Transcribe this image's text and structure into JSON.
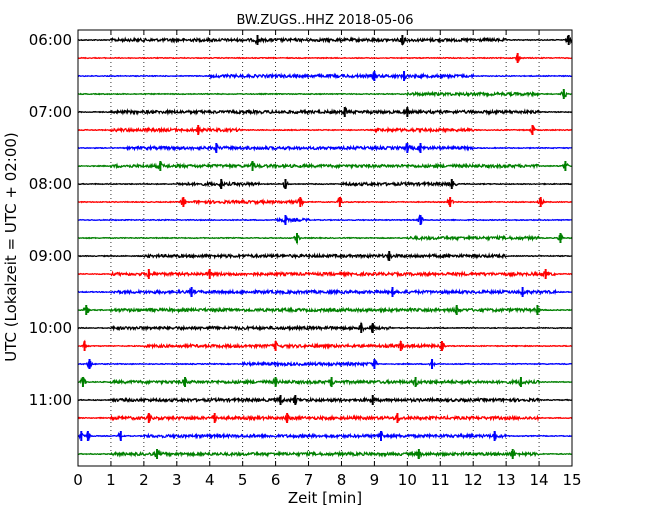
{
  "chart_data": {
    "type": "line",
    "title": "BW.ZUGS..HHZ 2018-05-06",
    "xlabel": "Zeit  [min]",
    "ylabel": "UTC (Lokalzeit = UTC + 02:00)",
    "xlim": [
      0,
      15
    ],
    "x_ticks": [
      "0",
      "1",
      "2",
      "3",
      "4",
      "5",
      "6",
      "7",
      "8",
      "9",
      "10",
      "11",
      "12",
      "13",
      "14",
      "15"
    ],
    "y_tick_labels": [
      "06:00",
      "07:00",
      "08:00",
      "09:00",
      "10:00",
      "11:00"
    ],
    "grid": "vertical-dotted",
    "trace_colors": [
      "#000000",
      "#ff0000",
      "#0000ff",
      "#008000"
    ],
    "traces": [
      {
        "start": "06:00",
        "color": "#000000",
        "spikes": [
          5.45,
          9.85,
          14.9
        ],
        "noisy": [
          [
            1,
            13
          ]
        ]
      },
      {
        "start": "06:15",
        "color": "#ff0000",
        "spikes": [
          13.35
        ],
        "noisy": []
      },
      {
        "start": "06:30",
        "color": "#0000ff",
        "spikes": [
          9.0,
          9.9
        ],
        "noisy": [
          [
            4,
            12
          ]
        ]
      },
      {
        "start": "06:45",
        "color": "#008000",
        "spikes": [
          14.75
        ],
        "noisy": [
          [
            10,
            14
          ]
        ]
      },
      {
        "start": "07:00",
        "color": "#000000",
        "spikes": [
          8.1,
          10.0
        ],
        "noisy": [
          [
            1,
            14
          ]
        ]
      },
      {
        "start": "07:15",
        "color": "#ff0000",
        "spikes": [
          3.65,
          13.8
        ],
        "noisy": [
          [
            1,
            5
          ],
          [
            9,
            12
          ]
        ]
      },
      {
        "start": "07:30",
        "color": "#0000ff",
        "spikes": [
          4.2,
          10.0,
          10.4
        ],
        "noisy": [
          [
            1.5,
            12
          ]
        ]
      },
      {
        "start": "07:45",
        "color": "#008000",
        "spikes": [
          2.5,
          5.3,
          14.8
        ],
        "noisy": [
          [
            1,
            14
          ]
        ]
      },
      {
        "start": "08:00",
        "color": "#000000",
        "spikes": [
          4.35,
          6.3,
          11.35
        ],
        "noisy": [
          [
            3,
            5.5
          ],
          [
            8,
            11.5
          ]
        ]
      },
      {
        "start": "08:15",
        "color": "#ff0000",
        "spikes": [
          3.2,
          6.75,
          7.95,
          11.3,
          14.05
        ],
        "noisy": [
          [
            3.5,
            6.8
          ]
        ]
      },
      {
        "start": "08:30",
        "color": "#0000ff",
        "spikes": [
          6.3,
          10.4
        ],
        "noisy": [
          [
            6,
            7
          ]
        ]
      },
      {
        "start": "08:45",
        "color": "#008000",
        "spikes": [
          6.65,
          14.65
        ],
        "noisy": [
          [
            10,
            14
          ]
        ]
      },
      {
        "start": "09:00",
        "color": "#000000",
        "spikes": [
          9.45
        ],
        "noisy": [
          [
            2,
            13
          ]
        ]
      },
      {
        "start": "09:15",
        "color": "#ff0000",
        "spikes": [
          2.15,
          4.0,
          14.2
        ],
        "noisy": [
          [
            1,
            14.5
          ]
        ]
      },
      {
        "start": "09:30",
        "color": "#0000ff",
        "spikes": [
          3.45,
          9.55,
          13.5
        ],
        "noisy": [
          [
            1,
            14.5
          ]
        ]
      },
      {
        "start": "09:45",
        "color": "#008000",
        "spikes": [
          0.25,
          11.5,
          13.95
        ],
        "noisy": [
          [
            1,
            14
          ]
        ]
      },
      {
        "start": "10:00",
        "color": "#000000",
        "spikes": [
          8.6,
          8.95
        ],
        "noisy": [
          [
            1,
            9.5
          ]
        ]
      },
      {
        "start": "10:15",
        "color": "#ff0000",
        "spikes": [
          0.2,
          6.0,
          9.8,
          11.05
        ],
        "noisy": [
          [
            2,
            11
          ]
        ]
      },
      {
        "start": "10:30",
        "color": "#0000ff",
        "spikes": [
          0.35,
          9.0,
          10.75
        ],
        "noisy": [
          [
            5,
            9
          ]
        ]
      },
      {
        "start": "10:45",
        "color": "#008000",
        "spikes": [
          0.15,
          3.25,
          6.0,
          7.7,
          10.25,
          13.45
        ],
        "noisy": [
          [
            1,
            14
          ]
        ]
      },
      {
        "start": "11:00",
        "color": "#000000",
        "spikes": [
          6.15,
          6.6,
          8.95
        ],
        "noisy": [
          [
            1,
            14
          ]
        ]
      },
      {
        "start": "11:15",
        "color": "#ff0000",
        "spikes": [
          2.15,
          4.15,
          6.35,
          9.7
        ],
        "noisy": [
          [
            1,
            14
          ]
        ]
      },
      {
        "start": "11:30",
        "color": "#0000ff",
        "spikes": [
          0.1,
          0.3,
          1.3,
          9.2,
          12.65
        ],
        "noisy": [
          [
            2,
            13
          ]
        ]
      },
      {
        "start": "11:45",
        "color": "#008000",
        "spikes": [
          2.4,
          10.35,
          13.2
        ],
        "noisy": [
          [
            1,
            14
          ]
        ]
      }
    ]
  }
}
